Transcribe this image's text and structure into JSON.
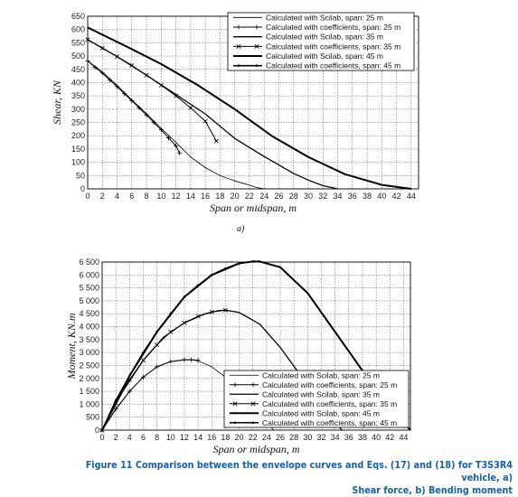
{
  "chart_data": [
    {
      "type": "line",
      "panel_label": "a)",
      "xlabel": "Span or midspan, m",
      "ylabel": "Shear, KN",
      "xlim": [
        0,
        45
      ],
      "ylim": [
        0,
        650
      ],
      "xticks": [
        "0",
        "2",
        "4",
        "6",
        "8",
        "10",
        "12",
        "14",
        "16",
        "18",
        "20",
        "22",
        "24",
        "26",
        "28",
        "30",
        "32",
        "34",
        "36",
        "38",
        "40",
        "42",
        "44"
      ],
      "yticks": [
        "0",
        "50",
        "100",
        "150",
        "200",
        "250",
        "300",
        "350",
        "400",
        "450",
        "500",
        "550",
        "600",
        "650"
      ],
      "grid": true,
      "legend_position": "top-right",
      "series": [
        {
          "name": "Calculated with Scilab, span: 25 m",
          "style": "thin",
          "x": [
            0,
            2,
            4,
            6,
            8,
            10,
            12,
            14,
            16,
            18,
            20,
            22,
            23,
            24
          ],
          "y": [
            482,
            440,
            390,
            335,
            283,
            228,
            175,
            120,
            80,
            50,
            30,
            14,
            5,
            0
          ]
        },
        {
          "name": "Calculated with coefficients, span: 25 m",
          "style": "plus",
          "x": [
            0,
            1,
            2,
            3,
            4,
            5,
            6,
            7,
            8,
            9,
            10,
            11,
            12,
            12.5
          ],
          "y": [
            482,
            458,
            436,
            410,
            385,
            358,
            332,
            305,
            278,
            250,
            222,
            192,
            162,
            135
          ]
        },
        {
          "name": "Calculated with Scilab, span: 35 m",
          "style": "medium",
          "x": [
            0,
            4,
            8,
            12,
            16,
            20,
            24,
            28,
            30,
            32,
            34
          ],
          "y": [
            562,
            498,
            428,
            355,
            282,
            190,
            122,
            58,
            33,
            12,
            0
          ]
        },
        {
          "name": "Calculated with coefficients, span: 35 m",
          "style": "cross",
          "x": [
            0,
            2,
            4,
            6,
            8,
            10,
            12,
            14,
            16,
            17.5
          ],
          "y": [
            562,
            530,
            498,
            465,
            428,
            390,
            350,
            305,
            255,
            180
          ]
        },
        {
          "name": "Calculated with Scilab, span: 45 m",
          "style": "thick",
          "x": [
            0,
            5,
            10,
            15,
            20,
            25,
            30,
            35,
            40,
            44
          ],
          "y": [
            608,
            540,
            470,
            390,
            300,
            200,
            120,
            55,
            15,
            0
          ]
        },
        {
          "name": "Calculated with coefficients, span: 45 m",
          "style": "dot",
          "x": [],
          "y": []
        }
      ]
    },
    {
      "type": "line",
      "xlabel": "Span or midspan, m",
      "ylabel": "Moment, KN.m",
      "xlim": [
        0,
        45
      ],
      "ylim": [
        0,
        6500
      ],
      "xticks": [
        "0",
        "2",
        "4",
        "6",
        "8",
        "10",
        "12",
        "14",
        "16",
        "18",
        "20",
        "22",
        "24",
        "26",
        "28",
        "30",
        "32",
        "34",
        "36",
        "38",
        "40",
        "42",
        "44"
      ],
      "yticks": [
        "0",
        "500",
        "1 000",
        "1 500",
        "2 000",
        "2 500",
        "3 000",
        "3 500",
        "4 000",
        "4 500",
        "5 000",
        "5 500",
        "6 000",
        "6 500"
      ],
      "grid": true,
      "legend_position": "bottom-right",
      "series": [
        {
          "name": "Calculated with Scilab, span: 25 m",
          "style": "thin",
          "x": [
            0,
            2,
            4,
            6,
            8,
            10,
            12,
            13,
            14,
            16,
            18,
            20,
            22,
            24,
            25
          ],
          "y": [
            0,
            800,
            1500,
            2050,
            2450,
            2650,
            2720,
            2720,
            2680,
            2450,
            2050,
            1550,
            950,
            350,
            0
          ]
        },
        {
          "name": "Calculated with coefficients, span: 25 m",
          "style": "plus",
          "x": [
            0,
            2,
            4,
            6,
            8,
            10,
            12,
            13,
            14
          ],
          "y": [
            0,
            820,
            1500,
            2050,
            2450,
            2650,
            2720,
            2720,
            2700
          ]
        },
        {
          "name": "Calculated with Scilab, span: 35 m",
          "style": "medium",
          "x": [
            0,
            3,
            6,
            9,
            12,
            15,
            17,
            18,
            20,
            23,
            26,
            29,
            32,
            35
          ],
          "y": [
            0,
            1500,
            2700,
            3600,
            4150,
            4500,
            4620,
            4640,
            4550,
            4100,
            3200,
            2100,
            1000,
            0
          ]
        },
        {
          "name": "Calculated with coefficients, span: 35 m",
          "style": "cross",
          "x": [
            0,
            2,
            4,
            6,
            8,
            10,
            12,
            14,
            16,
            18
          ],
          "y": [
            0,
            1050,
            1950,
            2700,
            3300,
            3800,
            4150,
            4400,
            4570,
            4640
          ]
        },
        {
          "name": "Calculated with Scilab, span: 45 m",
          "style": "thick",
          "x": [
            0,
            4,
            8,
            12,
            16,
            20,
            22,
            23,
            26,
            30,
            34,
            38,
            42,
            45
          ],
          "y": [
            0,
            2100,
            3800,
            5150,
            6000,
            6450,
            6520,
            6520,
            6300,
            5300,
            3800,
            2300,
            900,
            0
          ]
        },
        {
          "name": "Calculated with coefficients, span: 45 m",
          "style": "dot",
          "x": [
            0,
            2,
            4,
            6,
            8,
            10,
            12,
            14,
            16,
            18,
            20,
            22,
            23
          ],
          "y": [
            0,
            1150,
            2100,
            3000,
            3800,
            4500,
            5150,
            5600,
            6000,
            6250,
            6450,
            6520,
            6520
          ]
        }
      ]
    }
  ],
  "caption": {
    "line1": "Figure 11 Comparison between the envelope curves and Eqs. (17) and (18) for T3S3R4 vehicle, a)",
    "line2": "Shear force, b) Bending moment"
  }
}
